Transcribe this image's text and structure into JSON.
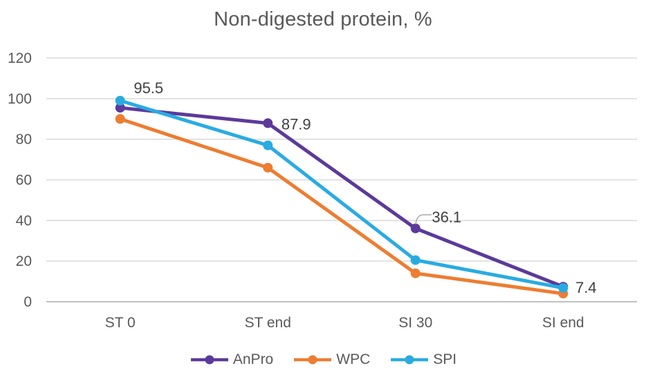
{
  "title": "Non-digested protein, %",
  "chart_data": {
    "type": "line",
    "title": "Non-digested protein, %",
    "categories": [
      "ST 0",
      "ST end",
      "SI 30",
      "SI end"
    ],
    "series": [
      {
        "name": "AnPro",
        "color": "#5B3A9B",
        "values": [
          95.5,
          87.9,
          36.1,
          7.4
        ]
      },
      {
        "name": "WPC",
        "color": "#ED7D31",
        "values": [
          90,
          66,
          14,
          4
        ]
      },
      {
        "name": "SPI",
        "color": "#29ABE2",
        "values": [
          99,
          77,
          20.5,
          6.8
        ]
      }
    ],
    "data_labels": {
      "series": "AnPro",
      "values": [
        "95.5",
        "87.9",
        "36.1",
        "7.4"
      ]
    },
    "yticks": [
      0,
      20,
      40,
      60,
      80,
      100,
      120
    ],
    "ylim": [
      0,
      120
    ],
    "grid": true,
    "legend_position": "bottom",
    "colors": {
      "grid": "#D9D9D9",
      "axis": "#BFBFBF",
      "tick_text": "#595959",
      "title_text": "#595959",
      "data_label_text": "#404040",
      "leader_line": "#A6A6A6"
    }
  }
}
